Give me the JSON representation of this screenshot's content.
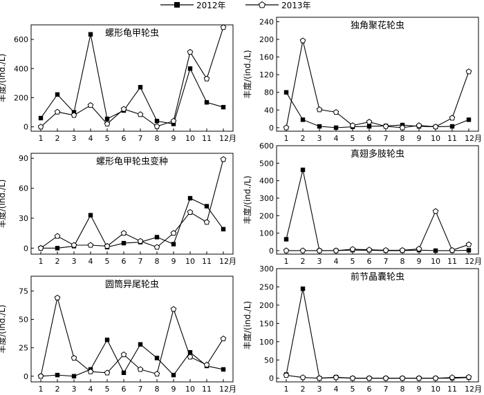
{
  "legend": {
    "items": [
      {
        "label": "2012年",
        "marker": "square-filled"
      },
      {
        "label": "2013年",
        "marker": "pentagon-open"
      }
    ]
  },
  "chart_data": [
    {
      "type": "line",
      "title": "螺形龟甲轮虫",
      "ylabel": "丰度/(ind./L)",
      "categories": [
        "1",
        "2",
        "3",
        "4",
        "5",
        "6",
        "7",
        "8",
        "9",
        "10",
        "11",
        "12月"
      ],
      "ylim": [
        -30,
        700
      ],
      "yticks": [
        0,
        200,
        400,
        600
      ],
      "series": [
        {
          "name": "2012年",
          "values": [
            60,
            222,
            100,
            635,
            55,
            112,
            272,
            40,
            20,
            400,
            168,
            135
          ]
        },
        {
          "name": "2013年",
          "values": [
            0,
            102,
            80,
            148,
            20,
            122,
            85,
            3,
            40,
            513,
            330,
            683
          ]
        }
      ]
    },
    {
      "type": "line",
      "title": "独角聚花轮虫",
      "ylabel": "丰度/(ind./L)",
      "categories": [
        "1",
        "2",
        "3",
        "4",
        "5",
        "6",
        "7",
        "8",
        "9",
        "10",
        "11",
        "12月"
      ],
      "ylim": [
        -8,
        250
      ],
      "yticks": [
        0,
        40,
        80,
        120,
        160,
        200,
        240
      ],
      "series": [
        {
          "name": "2012年",
          "values": [
            80,
            18,
            3,
            0,
            2,
            3,
            4,
            6,
            3,
            2,
            3,
            18
          ]
        },
        {
          "name": "2013年",
          "values": [
            0,
            197,
            41,
            35,
            5,
            13,
            3,
            0,
            5,
            2,
            22,
            127
          ]
        }
      ]
    },
    {
      "type": "line",
      "title": "螺形龟甲轮虫变种",
      "ylabel": "丰度/(ind./L)",
      "categories": [
        "1",
        "2",
        "3",
        "4",
        "5",
        "6",
        "7",
        "8",
        "9",
        "10",
        "11",
        "12月"
      ],
      "ylim": [
        -6,
        95
      ],
      "yticks": [
        0,
        30,
        60,
        90
      ],
      "series": [
        {
          "name": "2012年",
          "values": [
            0,
            0,
            2,
            33,
            1,
            5,
            6,
            11,
            4,
            50,
            42,
            19
          ]
        },
        {
          "name": "2013年",
          "values": [
            0,
            12,
            3,
            3,
            2,
            15,
            7,
            1,
            15,
            36,
            26,
            89
          ]
        }
      ]
    },
    {
      "type": "line",
      "title": "真翅多肢轮虫",
      "ylabel": "丰度/(ind./L)",
      "categories": [
        "1",
        "2",
        "3",
        "4",
        "5",
        "6",
        "7",
        "8",
        "9",
        "10",
        "11",
        "12月"
      ],
      "ylim": [
        -20,
        600
      ],
      "yticks": [
        0,
        100,
        200,
        300,
        400,
        500,
        600
      ],
      "series": [
        {
          "name": "2012年",
          "values": [
            65,
            462,
            0,
            0,
            3,
            2,
            0,
            0,
            3,
            0,
            0,
            2
          ]
        },
        {
          "name": "2013年",
          "values": [
            0,
            0,
            0,
            0,
            8,
            5,
            2,
            2,
            10,
            225,
            2,
            35
          ]
        }
      ]
    },
    {
      "type": "line",
      "title": "圆筒异尾轮虫",
      "ylabel": "丰度/(ind./L)",
      "categories": [
        "1",
        "2",
        "3",
        "4",
        "5",
        "6",
        "7",
        "8",
        "9",
        "10",
        "11",
        "12月"
      ],
      "ylim": [
        -5,
        88
      ],
      "yticks": [
        0,
        25,
        50,
        75
      ],
      "series": [
        {
          "name": "2012年",
          "values": [
            0,
            1,
            0,
            6,
            32,
            3,
            28,
            16,
            1,
            21,
            9,
            6
          ]
        },
        {
          "name": "2013年",
          "values": [
            0,
            69,
            16,
            4,
            3,
            19,
            6,
            2,
            59,
            17,
            10,
            33
          ]
        }
      ]
    },
    {
      "type": "line",
      "title": "前节晶囊轮虫",
      "ylabel": "丰度/(ind./L)",
      "categories": [
        "1",
        "2",
        "3",
        "4",
        "5",
        "6",
        "7",
        "8",
        "9",
        "10",
        "11",
        "12月"
      ],
      "ylim": [
        -10,
        300
      ],
      "yticks": [
        0,
        50,
        100,
        150,
        200,
        250,
        300
      ],
      "series": [
        {
          "name": "2012年",
          "values": [
            10,
            245,
            0,
            3,
            0,
            0,
            0,
            0,
            0,
            0,
            0,
            2
          ]
        },
        {
          "name": "2013年",
          "values": [
            8,
            2,
            0,
            2,
            0,
            0,
            0,
            0,
            0,
            0,
            2,
            3
          ]
        }
      ]
    }
  ]
}
